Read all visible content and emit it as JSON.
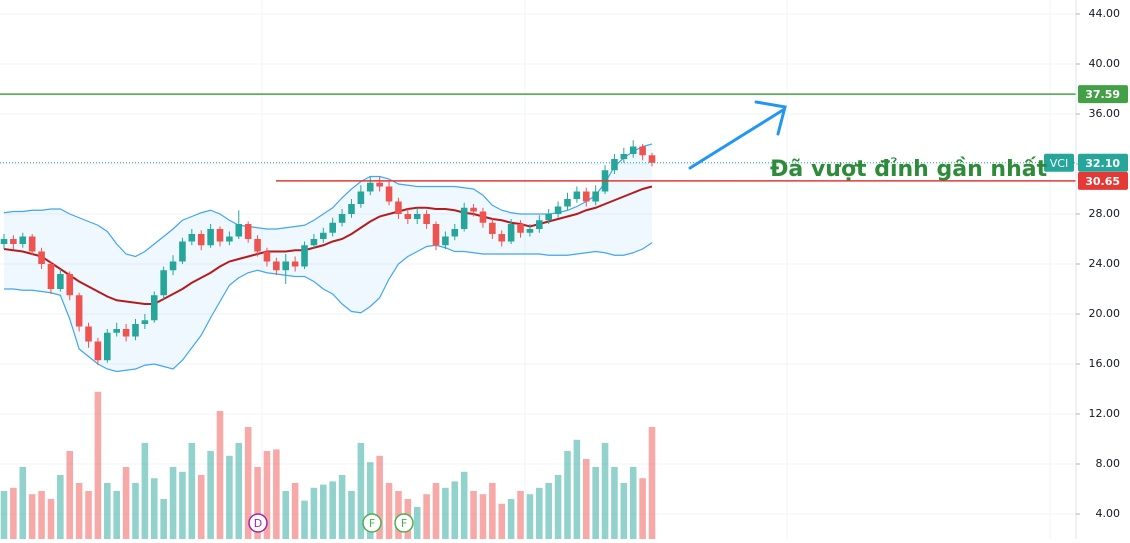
{
  "chart_data": {
    "type": "candlestick",
    "symbol": "VCI",
    "annotation": "Đã vượt đỉnh gần nhất",
    "events": [
      "D",
      "F",
      "F"
    ],
    "up_color": "#26a69a",
    "down_color": "#ef5350",
    "open": [
      25.6,
      26.0,
      25.6,
      26.2,
      25.0,
      24.0,
      22.0,
      23.2,
      21.5,
      19.0,
      17.8,
      16.3,
      18.5,
      18.8,
      18.2,
      19.2,
      19.5,
      21.5,
      23.5,
      24.2,
      25.8,
      26.4,
      25.5,
      26.8,
      25.8,
      26.2,
      27.2,
      26.0,
      25.0,
      24.2,
      23.5,
      24.2,
      23.8,
      25.5,
      26.0,
      26.5,
      27.3,
      28.0,
      28.8,
      29.8,
      30.5,
      30.2,
      29.0,
      28.0,
      27.6,
      28.0,
      27.2,
      25.5,
      26.2,
      26.8,
      28.5,
      28.2,
      27.3,
      26.4,
      25.8,
      27.2,
      26.5,
      26.8,
      27.5,
      28.0,
      28.6,
      29.2,
      29.8,
      29.0,
      29.8,
      31.5,
      32.4,
      32.8,
      33.4,
      32.7
    ],
    "high": [
      26.4,
      26.3,
      26.5,
      26.4,
      25.3,
      24.2,
      23.6,
      23.4,
      21.7,
      19.3,
      18.1,
      18.8,
      19.3,
      19.2,
      19.6,
      20.0,
      21.8,
      23.8,
      24.7,
      26.1,
      26.8,
      26.7,
      27.2,
      27.0,
      26.6,
      28.3,
      27.4,
      26.3,
      25.3,
      24.5,
      24.8,
      24.6,
      25.8,
      26.4,
      26.9,
      27.7,
      28.4,
      29.2,
      30.3,
      31.0,
      31.0,
      30.6,
      29.3,
      28.4,
      28.5,
      28.3,
      27.4,
      26.6,
      27.2,
      28.9,
      28.8,
      28.5,
      27.6,
      26.7,
      27.6,
      27.5,
      27.2,
      27.9,
      28.4,
      29.0,
      29.7,
      30.2,
      30.1,
      30.3,
      31.9,
      32.8,
      33.3,
      33.9,
      33.6,
      32.9
    ],
    "low": [
      25.2,
      25.2,
      25.3,
      24.7,
      23.6,
      21.6,
      21.8,
      21.1,
      18.6,
      17.3,
      15.9,
      16.1,
      18.2,
      17.8,
      17.9,
      18.8,
      19.3,
      21.2,
      23.1,
      24.0,
      25.5,
      25.1,
      25.3,
      25.4,
      25.5,
      26.0,
      25.7,
      24.6,
      23.8,
      23.1,
      22.4,
      23.4,
      23.6,
      25.2,
      25.7,
      26.2,
      27.0,
      27.7,
      28.5,
      29.5,
      29.8,
      28.7,
      27.6,
      27.2,
      27.2,
      26.8,
      25.1,
      25.2,
      25.9,
      26.6,
      27.8,
      26.9,
      26.0,
      25.4,
      25.6,
      26.1,
      26.2,
      26.5,
      27.2,
      27.7,
      28.3,
      28.9,
      28.6,
      28.7,
      29.6,
      31.2,
      32.1,
      32.5,
      32.3,
      31.8
    ],
    "close": [
      26.0,
      25.6,
      26.2,
      25.0,
      24.0,
      22.0,
      23.2,
      21.5,
      19.0,
      17.8,
      16.3,
      18.5,
      18.8,
      18.2,
      19.2,
      19.5,
      21.5,
      23.5,
      24.2,
      25.8,
      26.4,
      25.5,
      26.8,
      25.8,
      26.2,
      27.2,
      26.0,
      25.0,
      24.2,
      23.5,
      24.2,
      23.8,
      25.5,
      26.0,
      26.5,
      27.3,
      28.0,
      28.8,
      29.8,
      30.5,
      30.2,
      29.0,
      28.0,
      27.6,
      28.0,
      27.2,
      25.5,
      26.2,
      26.8,
      28.5,
      28.2,
      27.3,
      26.4,
      25.8,
      27.2,
      26.5,
      26.8,
      27.5,
      28.0,
      28.6,
      29.2,
      29.8,
      29.0,
      29.8,
      31.5,
      32.4,
      32.8,
      33.4,
      32.7,
      32.1
    ],
    "volume": [
      30,
      32,
      45,
      28,
      30,
      25,
      40,
      55,
      35,
      30,
      92,
      35,
      30,
      45,
      35,
      60,
      38,
      25,
      45,
      42,
      60,
      40,
      55,
      80,
      52,
      60,
      70,
      45,
      55,
      56,
      30,
      35,
      24,
      32,
      34,
      36,
      40,
      30,
      60,
      48,
      52,
      35,
      30,
      25,
      20,
      28,
      35,
      32,
      36,
      42,
      30,
      28,
      35,
      22,
      25,
      30,
      28,
      32,
      35,
      40,
      55,
      62,
      50,
      45,
      60,
      45,
      35,
      45,
      38,
      70
    ],
    "volume_lim": [
      0,
      100
    ],
    "bollinger_upper": [
      28.1,
      28.2,
      28.2,
      28.3,
      28.3,
      28.4,
      28.4,
      28.0,
      27.7,
      27.4,
      27.1,
      26.6,
      25.6,
      24.8,
      24.6,
      25.0,
      25.6,
      26.2,
      26.8,
      27.5,
      27.8,
      28.1,
      28.3,
      28.0,
      27.5,
      27.1,
      27.0,
      26.9,
      26.8,
      26.8,
      26.9,
      27.0,
      27.1,
      27.5,
      28.0,
      28.5,
      29.3,
      30.0,
      30.6,
      31.0,
      31.0,
      30.8,
      30.4,
      30.3,
      30.2,
      30.2,
      30.2,
      30.2,
      30.2,
      30.1,
      30.0,
      29.5,
      28.7,
      28.3,
      28.1,
      28.0,
      28.0,
      28.0,
      28.0,
      28.1,
      28.3,
      28.6,
      29.0,
      29.5,
      30.5,
      31.8,
      32.5,
      33.0,
      33.4,
      33.6
    ],
    "bollinger_lower": [
      22.0,
      22.0,
      21.9,
      21.9,
      21.8,
      21.7,
      21.5,
      19.6,
      17.2,
      16.6,
      16.0,
      15.6,
      15.4,
      15.5,
      15.6,
      15.9,
      16.0,
      15.8,
      15.6,
      16.3,
      17.3,
      18.3,
      19.7,
      21.0,
      22.3,
      22.9,
      23.3,
      23.5,
      23.3,
      23.2,
      23.1,
      23.0,
      23.0,
      22.6,
      22.0,
      21.6,
      20.8,
      20.2,
      20.1,
      20.6,
      21.3,
      22.8,
      24.0,
      24.6,
      25.0,
      25.4,
      25.5,
      25.3,
      25.0,
      25.0,
      24.9,
      24.8,
      24.8,
      24.8,
      24.8,
      24.8,
      24.8,
      24.8,
      24.7,
      24.7,
      24.7,
      24.8,
      24.9,
      25.0,
      24.9,
      24.7,
      24.7,
      24.9,
      25.2,
      25.7
    ],
    "ma": [
      25.2,
      25.1,
      25.0,
      24.8,
      24.6,
      24.1,
      23.6,
      23.1,
      22.6,
      22.2,
      21.8,
      21.4,
      21.1,
      21.0,
      20.9,
      20.8,
      20.8,
      21.2,
      21.6,
      22.0,
      22.5,
      22.9,
      23.3,
      23.8,
      24.2,
      24.4,
      24.6,
      24.8,
      25.0,
      25.0,
      25.0,
      25.1,
      25.1,
      25.3,
      25.5,
      25.8,
      26.0,
      26.4,
      26.9,
      27.4,
      27.8,
      28.0,
      28.2,
      28.4,
      28.5,
      28.5,
      28.4,
      28.4,
      28.3,
      28.1,
      28.0,
      27.8,
      27.6,
      27.5,
      27.3,
      27.2,
      27.0,
      27.2,
      27.4,
      27.6,
      27.8,
      28.0,
      28.3,
      28.5,
      28.8,
      29.1,
      29.4,
      29.7,
      30.0,
      30.2
    ],
    "ylim": [
      2,
      45.12
    ],
    "yticks": [
      {
        "value": 4,
        "label": "4.00"
      },
      {
        "value": 8,
        "label": "8.00"
      },
      {
        "value": 12,
        "label": "12.00"
      },
      {
        "value": 16,
        "label": "16.00"
      },
      {
        "value": 20,
        "label": "20.00"
      },
      {
        "value": 24,
        "label": "24.00"
      },
      {
        "value": 28,
        "label": "28.00"
      },
      {
        "value": 32,
        "label": "32.00"
      },
      {
        "value": 36,
        "label": "36.00"
      },
      {
        "value": 40,
        "label": "40.00"
      },
      {
        "value": 44,
        "label": "44.00"
      }
    ],
    "last_price": {
      "value": 32.1,
      "label": "32.10"
    },
    "levels": [
      {
        "value": 37.59,
        "color": "#43a047"
      },
      {
        "value": 30.65,
        "color": "#e53935"
      }
    ]
  }
}
